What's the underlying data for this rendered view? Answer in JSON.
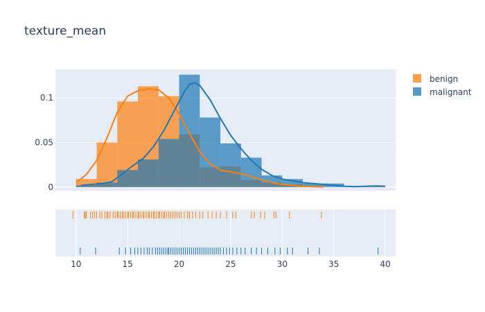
{
  "chart_data": {
    "type": "histogram",
    "title": "texture_mean",
    "xlabel": "",
    "ylabel": "",
    "xlim": [
      8,
      41
    ],
    "ylim": [
      -0.004,
      0.132
    ],
    "x_ticks": [
      10,
      15,
      20,
      25,
      30,
      35,
      40
    ],
    "x_tick_labels": [
      "10",
      "15",
      "20",
      "25",
      "30",
      "35",
      "40"
    ],
    "y_ticks": [
      0,
      0.05,
      0.1
    ],
    "y_tick_labels": [
      "0",
      "0.05",
      "0.1"
    ],
    "grid": true,
    "legend_position": "top-right",
    "histnorm": "probability density",
    "series": [
      {
        "name": "benign",
        "color": "#ff7f0e",
        "bins": [
          [
            10,
            12,
            0.009
          ],
          [
            12,
            14,
            0.05
          ],
          [
            14,
            16,
            0.096
          ],
          [
            16,
            18,
            0.113
          ],
          [
            18,
            20,
            0.102
          ],
          [
            20,
            22,
            0.059
          ],
          [
            22,
            24,
            0.022
          ],
          [
            24,
            26,
            0.023
          ],
          [
            26,
            28,
            0.008
          ],
          [
            28,
            30,
            0.005
          ],
          [
            30,
            32,
            0.003
          ],
          [
            32,
            34,
            0.001
          ]
        ],
        "kde": [
          [
            10.0,
            0.005
          ],
          [
            11.0,
            0.014
          ],
          [
            12.0,
            0.03
          ],
          [
            13.0,
            0.055
          ],
          [
            14.0,
            0.084
          ],
          [
            15.0,
            0.102
          ],
          [
            16.0,
            0.108
          ],
          [
            17.0,
            0.11
          ],
          [
            18.0,
            0.109
          ],
          [
            19.0,
            0.1
          ],
          [
            20.0,
            0.082
          ],
          [
            21.0,
            0.06
          ],
          [
            22.0,
            0.04
          ],
          [
            23.0,
            0.026
          ],
          [
            24.0,
            0.019
          ],
          [
            25.0,
            0.017
          ],
          [
            26.0,
            0.015
          ],
          [
            27.0,
            0.012
          ],
          [
            28.0,
            0.008
          ],
          [
            29.0,
            0.005
          ],
          [
            30.0,
            0.003
          ],
          [
            31.0,
            0.002
          ],
          [
            32.0,
            0.001
          ],
          [
            33.0,
            0.0005
          ],
          [
            34.0,
            0.0002
          ]
        ],
        "rug": [
          9.7,
          10.8,
          10.9,
          11.0,
          11.4,
          11.6,
          11.8,
          12.0,
          12.3,
          12.5,
          12.8,
          13.0,
          13.1,
          13.3,
          13.6,
          13.8,
          14.0,
          14.1,
          14.3,
          14.5,
          14.6,
          14.8,
          15.0,
          15.1,
          15.3,
          15.5,
          15.6,
          15.8,
          16.0,
          16.1,
          16.3,
          16.5,
          16.6,
          16.8,
          17.0,
          17.1,
          17.3,
          17.5,
          17.6,
          17.8,
          18.0,
          18.1,
          18.3,
          18.5,
          18.6,
          18.8,
          19.0,
          19.2,
          19.4,
          19.6,
          19.8,
          20.0,
          20.2,
          20.5,
          20.8,
          21.0,
          21.3,
          21.6,
          22.0,
          22.3,
          22.8,
          23.2,
          23.6,
          24.0,
          24.6,
          25.2,
          25.5,
          27.0,
          27.3,
          27.9,
          28.3,
          29.2,
          29.4,
          30.7,
          33.8
        ]
      },
      {
        "name": "malignant",
        "color": "#1f77b4",
        "bins": [
          [
            10,
            12,
            0.002
          ],
          [
            12,
            14,
            0.005
          ],
          [
            14,
            16,
            0.019
          ],
          [
            16,
            18,
            0.031
          ],
          [
            18,
            20,
            0.054
          ],
          [
            20,
            22,
            0.126
          ],
          [
            22,
            24,
            0.078
          ],
          [
            24,
            26,
            0.049
          ],
          [
            26,
            28,
            0.033
          ],
          [
            28,
            30,
            0.013
          ],
          [
            30,
            32,
            0.009
          ],
          [
            32,
            34,
            0.004
          ],
          [
            34,
            36,
            0.004
          ],
          [
            36,
            38,
            0.0
          ],
          [
            38,
            40,
            0.001
          ]
        ],
        "kde": [
          [
            10.5,
            0.002
          ],
          [
            11.5,
            0.003
          ],
          [
            12.5,
            0.004
          ],
          [
            13.5,
            0.006
          ],
          [
            14.5,
            0.015
          ],
          [
            15.5,
            0.024
          ],
          [
            16.5,
            0.032
          ],
          [
            17.5,
            0.045
          ],
          [
            18.5,
            0.063
          ],
          [
            19.5,
            0.085
          ],
          [
            20.5,
            0.107
          ],
          [
            21.0,
            0.115
          ],
          [
            21.5,
            0.117
          ],
          [
            22.0,
            0.114
          ],
          [
            23.0,
            0.098
          ],
          [
            24.0,
            0.077
          ],
          [
            25.0,
            0.058
          ],
          [
            26.0,
            0.043
          ],
          [
            27.0,
            0.03
          ],
          [
            28.0,
            0.02
          ],
          [
            29.0,
            0.013
          ],
          [
            30.0,
            0.009
          ],
          [
            31.0,
            0.007
          ],
          [
            32.0,
            0.005
          ],
          [
            33.0,
            0.004
          ],
          [
            34.0,
            0.003
          ],
          [
            35.0,
            0.002
          ],
          [
            36.0,
            0.001
          ],
          [
            37.0,
            0.0005
          ],
          [
            38.0,
            0.0008
          ],
          [
            39.0,
            0.0012
          ],
          [
            40.0,
            0.001
          ]
        ],
        "rug": [
          10.4,
          11.9,
          14.2,
          14.8,
          15.3,
          15.7,
          16.0,
          16.3,
          16.6,
          16.9,
          17.1,
          17.4,
          17.7,
          17.9,
          18.1,
          18.3,
          18.5,
          18.7,
          18.9,
          19.0,
          19.2,
          19.4,
          19.6,
          19.8,
          20.0,
          20.2,
          20.4,
          20.6,
          20.8,
          21.0,
          21.2,
          21.4,
          21.6,
          21.8,
          22.0,
          22.2,
          22.4,
          22.6,
          22.8,
          23.0,
          23.2,
          23.4,
          23.6,
          23.8,
          24.0,
          24.3,
          24.6,
          24.9,
          25.2,
          25.6,
          26.0,
          26.4,
          27.0,
          27.5,
          28.0,
          28.6,
          29.3,
          29.8,
          30.5,
          31.0,
          32.5,
          33.6,
          39.3
        ]
      }
    ]
  }
}
